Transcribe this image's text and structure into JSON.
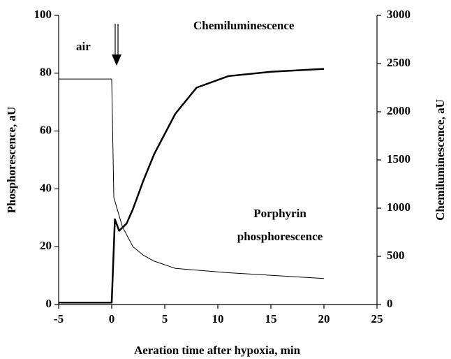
{
  "chart_data": {
    "type": "line",
    "xlabel": "Aeration time after hypoxia, min",
    "ylabel": "Phosphorescence, aU",
    "y2label": "Chemiluminescence, aU",
    "xlim": [
      -5,
      25
    ],
    "xticks": [
      -5,
      0,
      5,
      10,
      15,
      20,
      25
    ],
    "ylim": [
      0,
      100
    ],
    "yticks": [
      0,
      20,
      40,
      60,
      80,
      100
    ],
    "y2lim": [
      0,
      3000
    ],
    "y2ticks": [
      0,
      500,
      1000,
      1500,
      2000,
      2500,
      3000
    ],
    "series": [
      {
        "name": "Porphyrin phosphorescence",
        "color": "#000000",
        "width": 1,
        "x": [
          -5,
          0,
          0.2,
          1,
          2,
          3,
          4,
          6,
          11,
          20
        ],
        "values": [
          78,
          78,
          37,
          27,
          20,
          17,
          15,
          12.5,
          11,
          9
        ]
      },
      {
        "name": "Chemiluminescence",
        "color": "#000000",
        "width": 2.5,
        "axis": "y2",
        "x": [
          -5,
          0,
          0.3,
          0.7,
          1.4,
          2,
          3,
          4,
          6,
          8,
          11,
          15,
          20
        ],
        "values": [
          20,
          20,
          885,
          765,
          840,
          990,
          1290,
          1560,
          1980,
          2250,
          2370,
          2415,
          2445
        ]
      }
    ],
    "annotations": {
      "air": "air",
      "chemi": "Chemiluminescence",
      "phos": [
        "Porphyrin",
        "phosphorescence"
      ]
    }
  }
}
